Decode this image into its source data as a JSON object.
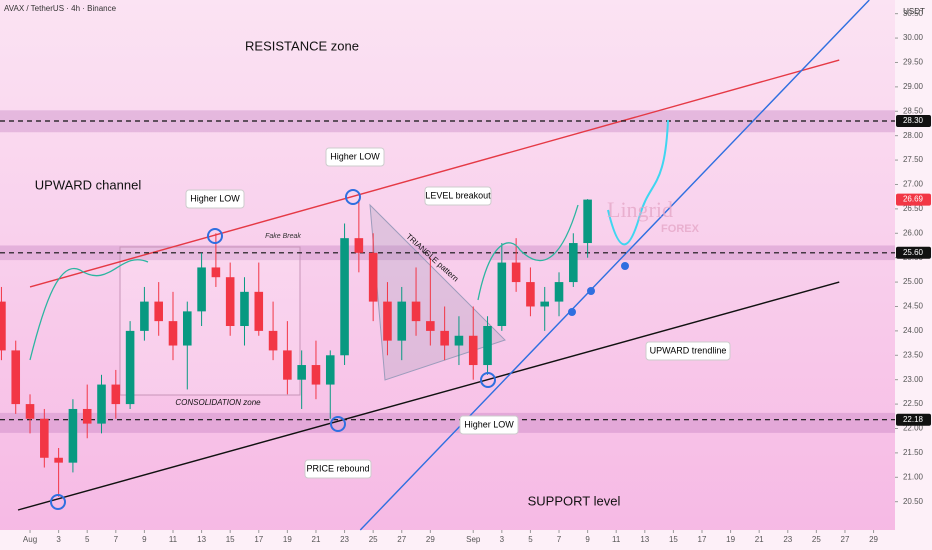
{
  "chart_data": {
    "type": "candlestick",
    "title": "AVAX / TetherUS · 4h · Binance",
    "y_unit": "USDT",
    "x": [
      -2,
      -1,
      0,
      1,
      2,
      3,
      4,
      5,
      6,
      7,
      8,
      9,
      10,
      11,
      12,
      13,
      14,
      15,
      16,
      17,
      18,
      19,
      20,
      21,
      22,
      23,
      24,
      25,
      26,
      27,
      28,
      29,
      30,
      31,
      32,
      33,
      34,
      35,
      36,
      37,
      38,
      39
    ],
    "open": [
      24.6,
      23.6,
      22.5,
      22.2,
      21.4,
      21.3,
      22.4,
      22.1,
      22.9,
      22.5,
      24.0,
      24.6,
      24.2,
      23.7,
      24.4,
      25.3,
      25.1,
      24.1,
      24.8,
      24.0,
      23.6,
      23.0,
      23.3,
      22.9,
      23.5,
      25.9,
      25.6,
      24.6,
      23.8,
      24.6,
      24.2,
      24.0,
      23.7,
      23.9,
      23.3,
      24.1,
      25.4,
      25.0,
      24.5,
      24.6,
      25.0,
      25.8
    ],
    "high": [
      24.9,
      23.8,
      22.7,
      22.4,
      21.6,
      22.6,
      22.9,
      23.1,
      23.2,
      24.2,
      24.9,
      25.0,
      24.8,
      24.6,
      25.6,
      26.0,
      25.4,
      25.1,
      25.4,
      24.6,
      24.2,
      23.6,
      23.8,
      23.6,
      26.2,
      26.7,
      26.0,
      25.0,
      24.9,
      25.3,
      25.5,
      24.5,
      24.3,
      24.5,
      24.3,
      25.8,
      25.9,
      25.3,
      24.9,
      25.2,
      26.0,
      26.7
    ],
    "low": [
      23.4,
      22.3,
      21.9,
      21.2,
      20.6,
      21.1,
      21.8,
      21.9,
      22.2,
      22.4,
      23.8,
      23.9,
      23.4,
      22.8,
      24.1,
      24.9,
      23.9,
      23.7,
      23.9,
      23.4,
      22.7,
      22.4,
      22.6,
      22.2,
      23.3,
      25.2,
      24.2,
      23.5,
      23.4,
      23.9,
      23.7,
      23.4,
      23.3,
      23.0,
      23.1,
      24.0,
      24.8,
      24.3,
      24.0,
      24.3,
      24.9,
      25.5
    ],
    "close": [
      23.6,
      22.5,
      22.2,
      21.4,
      21.3,
      22.4,
      22.1,
      22.9,
      22.5,
      24.0,
      24.6,
      24.2,
      23.7,
      24.4,
      25.3,
      25.1,
      24.1,
      24.8,
      24.0,
      23.6,
      23.0,
      23.3,
      22.9,
      23.5,
      25.9,
      25.6,
      24.6,
      23.8,
      24.6,
      24.2,
      24.0,
      23.7,
      23.9,
      23.3,
      24.1,
      25.4,
      25.0,
      24.5,
      24.6,
      25.0,
      25.8,
      26.69
    ],
    "up_color": "#089981",
    "down_color": "#f23645",
    "xlim": [
      -2.1,
      60.5
    ],
    "ylim": [
      19.92,
      30.78
    ],
    "xticks": [
      {
        "value": 0,
        "label": "Aug"
      },
      {
        "value": 2,
        "label": "3"
      },
      {
        "value": 4,
        "label": "5"
      },
      {
        "value": 6,
        "label": "7"
      },
      {
        "value": 8,
        "label": "9"
      },
      {
        "value": 10,
        "label": "11"
      },
      {
        "value": 12,
        "label": "13"
      },
      {
        "value": 14,
        "label": "15"
      },
      {
        "value": 16,
        "label": "17"
      },
      {
        "value": 18,
        "label": "19"
      },
      {
        "value": 20,
        "label": "21"
      },
      {
        "value": 22,
        "label": "23"
      },
      {
        "value": 24,
        "label": "25"
      },
      {
        "value": 26,
        "label": "27"
      },
      {
        "value": 28,
        "label": "29"
      },
      {
        "value": 31,
        "label": "Sep"
      },
      {
        "value": 33,
        "label": "3"
      },
      {
        "value": 35,
        "label": "5"
      },
      {
        "value": 37,
        "label": "7"
      },
      {
        "value": 39,
        "label": "9"
      },
      {
        "value": 41,
        "label": "11"
      },
      {
        "value": 43,
        "label": "13"
      },
      {
        "value": 45,
        "label": "15"
      },
      {
        "value": 47,
        "label": "17"
      },
      {
        "value": 49,
        "label": "19"
      },
      {
        "value": 51,
        "label": "21"
      },
      {
        "value": 53,
        "label": "23"
      },
      {
        "value": 55,
        "label": "25"
      },
      {
        "value": 57,
        "label": "27"
      },
      {
        "value": 59,
        "label": "29"
      }
    ],
    "yticks": [
      {
        "value": 20.5,
        "label": "20.50"
      },
      {
        "value": 21,
        "label": "21.00"
      },
      {
        "value": 21.5,
        "label": "21.50"
      },
      {
        "value": 22,
        "label": "22.00"
      },
      {
        "value": 22.5,
        "label": "22.50"
      },
      {
        "value": 23,
        "label": "23.00"
      },
      {
        "value": 23.5,
        "label": "23.50"
      },
      {
        "value": 24,
        "label": "24.00"
      },
      {
        "value": 24.5,
        "label": "24.50"
      },
      {
        "value": 25,
        "label": "25.00"
      },
      {
        "value": 25.5,
        "label": "25.50"
      },
      {
        "value": 26,
        "label": "26.00"
      },
      {
        "value": 26.5,
        "label": "26.50"
      },
      {
        "value": 27,
        "label": "27.00"
      },
      {
        "value": 27.5,
        "label": "27.50"
      },
      {
        "value": 28,
        "label": "28.00"
      },
      {
        "value": 28.5,
        "label": "28.50"
      },
      {
        "value": 29,
        "label": "29.00"
      },
      {
        "value": 29.5,
        "label": "29.50"
      },
      {
        "value": 30,
        "label": "30.00"
      },
      {
        "value": 30.5,
        "label": "30.50"
      }
    ],
    "levels": [
      {
        "value": 28.3,
        "label": "28.30"
      },
      {
        "value": 25.6,
        "label": "25.60"
      },
      {
        "value": 22.18,
        "label": "22.18"
      }
    ],
    "zones": [
      {
        "from": 28.07,
        "to": 28.52
      },
      {
        "from": 25.45,
        "to": 25.75
      },
      {
        "from": 21.91,
        "to": 22.32
      }
    ],
    "last_price": {
      "value": 26.69,
      "label": "26.69"
    },
    "lines": [
      {
        "color": "#e53945",
        "x": [
          0,
          56.6
        ],
        "y": [
          24.9,
          29.55
        ]
      },
      {
        "color": "#111111",
        "x": [
          -0.84,
          56.6
        ],
        "y": [
          20.33,
          25.0
        ]
      },
      {
        "color": "#2f6fe0",
        "x": [
          23.1,
          58.7
        ],
        "y": [
          19.92,
          30.78
        ]
      }
    ],
    "annotations": {
      "resistance": "RESISTANCE zone",
      "channel": "UPWARD channel",
      "higher_low_1": "Higher LOW",
      "higher_low_2": "Higher LOW",
      "higher_low_3": "Higher LOW",
      "fake_break": "Fake Break",
      "consolidation": "CONSOLIDATION zone",
      "rebound": "PRICE rebound",
      "triangle": "TRIANGLE pattern",
      "breakout": "LEVEL breakout",
      "trendline": "UPWARD trendline",
      "support": "SUPPORT level",
      "brand": "Lingrid",
      "brand_sub": "FOREX"
    }
  }
}
